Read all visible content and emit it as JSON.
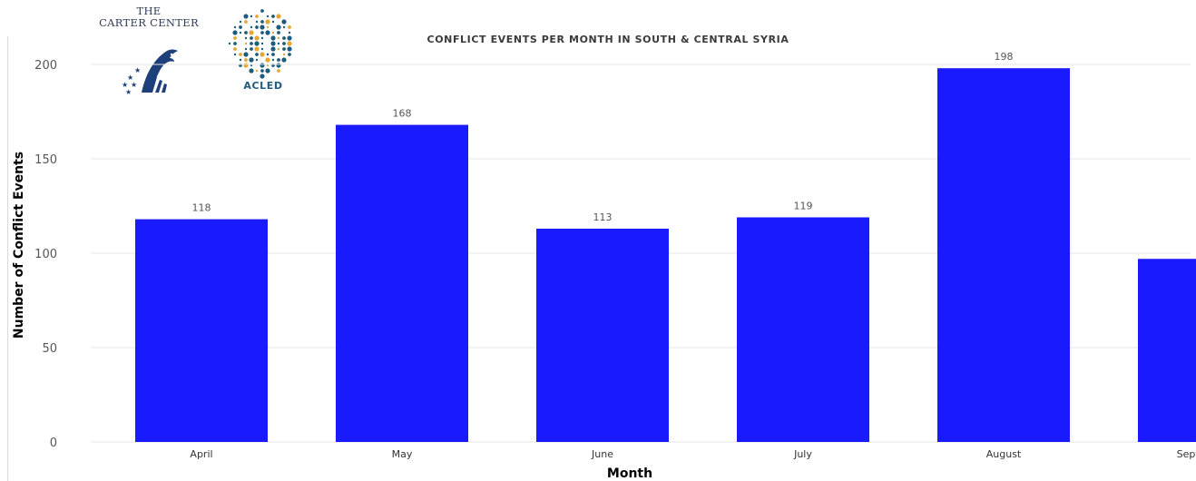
{
  "logos": {
    "carter_line1": "THE",
    "carter_line2": "CARTER CENTER",
    "carter_icon": "eagle-stars-icon",
    "acled_label": "ACLED",
    "acled_icon": "globe-dots-icon"
  },
  "colors": {
    "bar": "#1a1aff",
    "gridline": "#e6e6e6",
    "label": "#555555",
    "acled_teal": "#1d5c7c",
    "acled_gold": "#e6a732"
  },
  "chart_data": {
    "type": "bar",
    "title": "CONFLICT EVENTS PER MONTH IN SOUTH & CENTRAL SYRIA",
    "xlabel": "Month",
    "ylabel": "Number of Conflict Events",
    "categories": [
      "April",
      "May",
      "June",
      "July",
      "August",
      "September"
    ],
    "values": [
      118,
      168,
      113,
      119,
      198,
      97
    ],
    "yticks": [
      0,
      50,
      100,
      150,
      200
    ],
    "ylim": [
      0,
      200
    ],
    "grid": true,
    "data_labels": true
  }
}
